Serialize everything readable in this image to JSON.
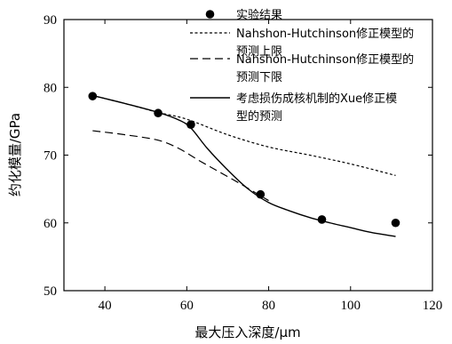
{
  "chart_data": {
    "type": "scatter",
    "xlabel": "最大压入深度/μm",
    "ylabel": "约化模量/GPa",
    "xlim": [
      30,
      120
    ],
    "ylim": [
      50,
      90
    ],
    "xticks": [
      40,
      60,
      80,
      100,
      120
    ],
    "yticks": [
      50,
      60,
      70,
      80,
      90
    ],
    "grid": false,
    "legend_position": "top-right",
    "series": [
      {
        "name": "实验结果",
        "style": "marker",
        "x": [
          37,
          53,
          61,
          78,
          93,
          111
        ],
        "y": [
          78.7,
          76.2,
          74.5,
          64.2,
          60.5,
          60.0
        ]
      },
      {
        "name": "Nahshon-Hutchinson修正模型的预测上限",
        "style": "dotted",
        "x": [
          37,
          45,
          53,
          60,
          70,
          80,
          90,
          100,
          111
        ],
        "y": [
          78.8,
          77.6,
          76.3,
          75.3,
          73.0,
          71.2,
          70.0,
          68.7,
          67.0
        ]
      },
      {
        "name": "Nahshon-Hutchinson修正模型的预测下限",
        "style": "dashed",
        "x": [
          37,
          45,
          53,
          58,
          63,
          68,
          73,
          78,
          80
        ],
        "y": [
          73.6,
          73.0,
          72.2,
          71.0,
          69.2,
          67.5,
          65.8,
          64.0,
          63.3
        ]
      },
      {
        "name": "考虑损伤成核机制的Xue修正模型的预测",
        "style": "solid",
        "x": [
          37,
          45,
          53,
          58,
          61,
          65,
          70,
          75,
          80,
          85,
          90,
          95,
          100,
          105,
          111
        ],
        "y": [
          78.8,
          77.6,
          76.3,
          75.2,
          74.0,
          71.0,
          67.8,
          65.0,
          63.0,
          61.8,
          60.8,
          60.0,
          59.3,
          58.6,
          58.0
        ]
      }
    ],
    "legend": [
      {
        "lines": [
          "实验结果"
        ]
      },
      {
        "lines": [
          "Nahshon-Hutchinson修正模型的",
          "预测上限"
        ]
      },
      {
        "lines": [
          "Nahshon-Hutchinson修正模型的",
          "预测下限"
        ]
      },
      {
        "lines": [
          "考虑损伤成核机制的Xue修正模",
          "型的预测"
        ]
      }
    ]
  }
}
